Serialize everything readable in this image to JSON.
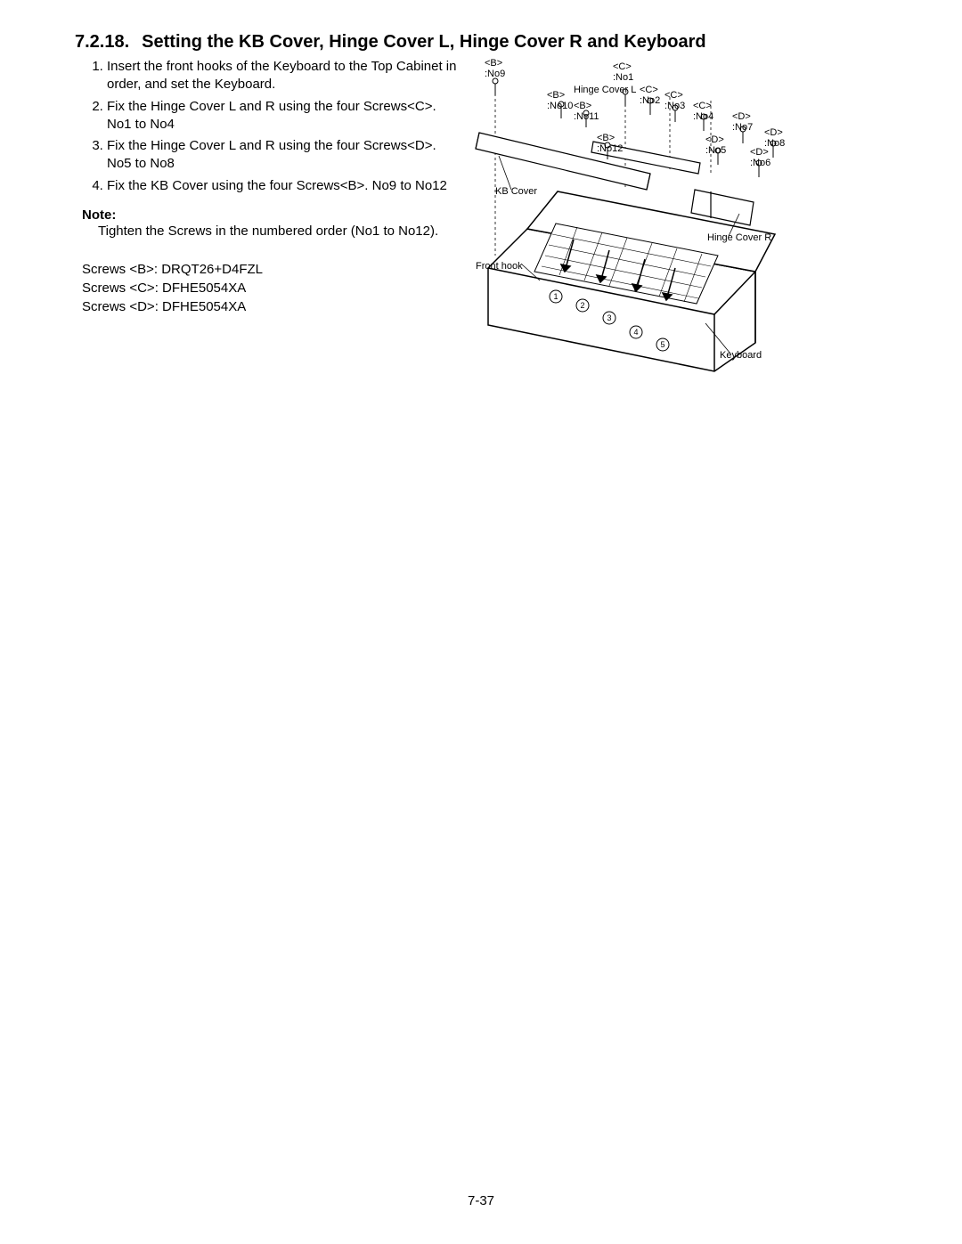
{
  "heading": {
    "number": "7.2.18.",
    "title": "Setting the KB Cover, Hinge Cover L, Hinge Cover R and Keyboard"
  },
  "steps": [
    "Insert the front hooks of the Keyboard to the Top Cabinet in order, and set the Keyboard.",
    "Fix the Hinge Cover L and R using the four Screws<C>. No1 to No4",
    "Fix the Hinge Cover L and R using the four Screws<D>. No5 to No8",
    "Fix the KB Cover using the four Screws<B>. No9 to No12"
  ],
  "note": {
    "label": "Note:",
    "text": "Tighten the Screws in the numbered order (No1 to No12)."
  },
  "screws": [
    "Screws <B>: DRQT26+D4FZL",
    "Screws <C>: DFHE5054XA",
    "Screws <D>: DFHE5054XA"
  ],
  "diagram_labels": {
    "b_no9": "<B>\n:No9",
    "b_no10": "<B>\n:No10",
    "b_no11": "<B>\n:No11",
    "b_no12": "<B>\n:No12",
    "c_no1": "<C>\n:No1",
    "c_no2": "<C>\n:No2",
    "c_no3": "<C>\n:No3",
    "c_no4": "<C>\n:No4",
    "d_no5": "<D>\n:No5",
    "d_no6": "<D>\n:No6",
    "d_no7": "<D>\n:No7",
    "d_no8": "<D>\n:No8",
    "hinge_l": "Hinge Cover L",
    "hinge_r": "Hinge Cover R",
    "kb_cover": "KB Cover",
    "front_hook": "Front hook",
    "keyboard": "Keyboard"
  },
  "page_number": "7-37",
  "colors": {
    "text": "#000000",
    "bg": "#ffffff",
    "line": "#000000"
  }
}
